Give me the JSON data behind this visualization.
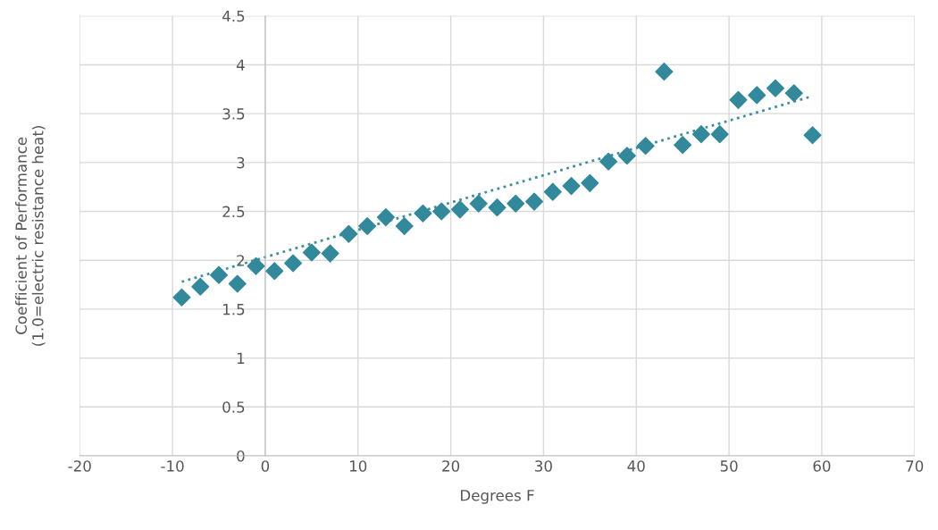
{
  "chart_data": {
    "type": "scatter",
    "xlabel": "Degrees F",
    "ylabel": "Coefficient of Performance\n(1.0=electric resistance heat)",
    "xlim": [
      -20,
      70
    ],
    "xticks": [
      -20,
      -10,
      0,
      10,
      20,
      30,
      40,
      50,
      60,
      70
    ],
    "ylim": [
      0,
      4.5
    ],
    "yticks": [
      0,
      0.5,
      1,
      1.5,
      2,
      2.5,
      3,
      3.5,
      4,
      4.5
    ],
    "grid": true,
    "marker": "diamond",
    "series": [
      {
        "color": "#31899b",
        "x": [
          -9,
          -7,
          -5,
          -3,
          -1,
          1,
          3,
          5,
          7,
          9,
          11,
          13,
          15,
          17,
          19,
          21,
          23,
          25,
          27,
          29,
          31,
          33,
          35,
          37,
          39,
          41,
          43,
          45,
          47,
          49,
          51,
          53,
          55,
          57,
          59
        ],
        "values": [
          1.62,
          1.73,
          1.85,
          1.76,
          1.94,
          1.89,
          1.97,
          2.08,
          2.07,
          2.27,
          2.35,
          2.44,
          2.35,
          2.48,
          2.5,
          2.52,
          2.58,
          2.54,
          2.58,
          2.6,
          2.7,
          2.76,
          2.79,
          3.01,
          3.07,
          3.17,
          3.93,
          3.18,
          3.29,
          3.29,
          3.64,
          3.69,
          3.76,
          3.71,
          3.28
        ]
      },
      {
        "type": "line",
        "color": "#3f8e9c",
        "line_style": "dotted",
        "marker": "none",
        "x": [
          -9,
          59
        ],
        "values": [
          1.78,
          3.68
        ]
      }
    ]
  }
}
